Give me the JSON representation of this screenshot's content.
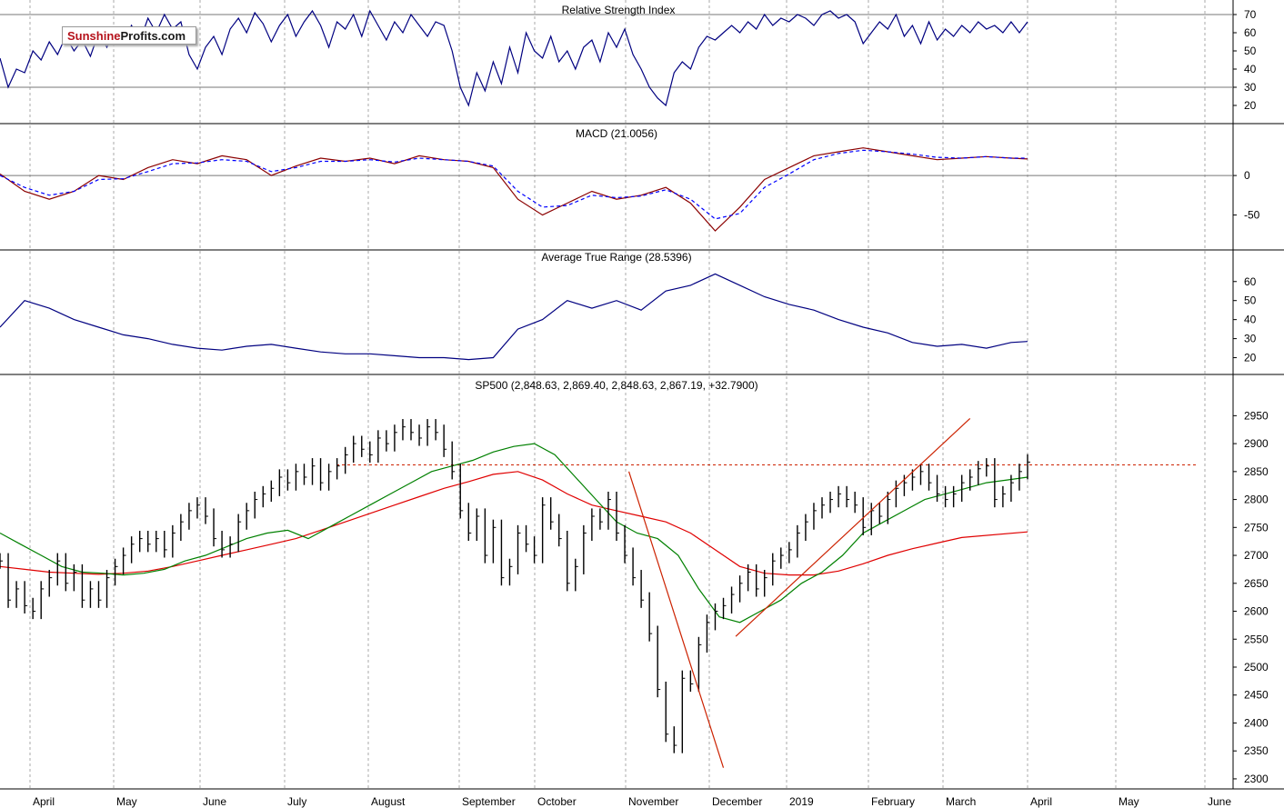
{
  "logo": {
    "part1": "Sunshine",
    "part2": "Profits.com"
  },
  "chart_data": {
    "type": "line",
    "months": [
      "April",
      "May",
      "June",
      "July",
      "August",
      "September",
      "October",
      "November",
      "December",
      "2019",
      "February",
      "March",
      "April",
      "May",
      "June"
    ],
    "colors": {
      "rsi": "#000080",
      "macd": "#8b0000",
      "signal": "#0000ff",
      "ma_fast": "#008000",
      "ma_slow": "#e00000",
      "trend": "#cc2200",
      "grid": "#aaaaaa"
    },
    "panels": [
      {
        "id": "rsi",
        "title": "Relative Strength Index",
        "y_ticks": [
          "70",
          "60",
          "50",
          "40",
          "30",
          "20"
        ],
        "ylim": [
          14,
          74
        ],
        "reference_lines": [
          70,
          30
        ],
        "series": [
          {
            "key": "rsi",
            "x": [
              0,
              2,
              4,
              6,
              8,
              10,
              12,
              14,
              16,
              18,
              20,
              22,
              24,
              26,
              28,
              30,
              32,
              34,
              36,
              38,
              40,
              42,
              44,
              46,
              48,
              50,
              52,
              54,
              56,
              58,
              60,
              62,
              64,
              66,
              68,
              70,
              72,
              74,
              76,
              78,
              80,
              82,
              84,
              86,
              88,
              90,
              92,
              94,
              96,
              98,
              100,
              102,
              104,
              106,
              108,
              110,
              112,
              114,
              116,
              118,
              120,
              122,
              124,
              126,
              128,
              130,
              132,
              134,
              136,
              138,
              140,
              142,
              144,
              146,
              148,
              150,
              152,
              154,
              156,
              158,
              160,
              162,
              164,
              166,
              168,
              170,
              172,
              174,
              176,
              178,
              180,
              182,
              184,
              186,
              188,
              190,
              192,
              194,
              196,
              198,
              200,
              202,
              204,
              206,
              208,
              210,
              212,
              214,
              216,
              218,
              220,
              222,
              224,
              226,
              228,
              230,
              232,
              234,
              236,
              238,
              240,
              242,
              244,
              246,
              248,
              250
            ],
            "values": [
              46,
              30,
              40,
              38,
              50,
              45,
              55,
              48,
              58,
              50,
              56,
              47,
              60,
              52,
              62,
              55,
              64,
              55,
              68,
              60,
              70,
              62,
              66,
              48,
              40,
              52,
              58,
              48,
              62,
              68,
              60,
              71,
              65,
              55,
              64,
              70,
              58,
              66,
              72,
              64,
              52,
              66,
              62,
              70,
              58,
              72,
              64,
              56,
              66,
              60,
              70,
              64,
              58,
              66,
              64,
              50,
              30,
              20,
              38,
              28,
              44,
              32,
              52,
              38,
              60,
              50,
              46,
              58,
              44,
              50,
              40,
              52,
              56,
              44,
              60,
              52,
              62,
              48,
              40,
              30,
              24,
              20,
              38,
              44,
              40,
              52,
              58,
              56,
              60,
              64,
              60,
              66,
              62,
              70,
              64,
              68,
              66,
              70,
              68,
              64,
              70,
              72,
              68,
              70,
              66,
              54,
              60,
              66,
              62,
              70,
              58,
              64,
              54,
              66,
              56,
              62,
              58,
              64,
              60,
              66,
              62,
              64,
              60,
              66,
              60,
              66
            ]
          }
        ]
      },
      {
        "id": "macd",
        "title": "MACD (21.0056)",
        "y_ticks": [
          "0",
          "-50"
        ],
        "ylim": [
          -85,
          45
        ],
        "reference_lines": [
          0
        ],
        "series": [
          {
            "key": "macd",
            "x": [
              0,
              6,
              12,
              18,
              24,
              30,
              36,
              42,
              48,
              54,
              60,
              66,
              72,
              78,
              84,
              90,
              96,
              102,
              108,
              114,
              120,
              126,
              132,
              138,
              144,
              150,
              156,
              162,
              168,
              174,
              180,
              186,
              192,
              198,
              204,
              210,
              216,
              222,
              228,
              234,
              240,
              246,
              250
            ],
            "values": [
              2,
              -20,
              -30,
              -20,
              0,
              -5,
              10,
              20,
              15,
              25,
              20,
              0,
              12,
              22,
              18,
              22,
              15,
              25,
              20,
              18,
              10,
              -30,
              -50,
              -35,
              -20,
              -30,
              -25,
              -15,
              -35,
              -70,
              -40,
              -5,
              10,
              25,
              30,
              35,
              30,
              25,
              20,
              22,
              24,
              22,
              21
            ]
          },
          {
            "key": "signal",
            "x": [
              0,
              6,
              12,
              18,
              24,
              30,
              36,
              42,
              48,
              54,
              60,
              66,
              72,
              78,
              84,
              90,
              96,
              102,
              108,
              114,
              120,
              126,
              132,
              138,
              144,
              150,
              156,
              162,
              168,
              174,
              180,
              186,
              192,
              198,
              204,
              210,
              216,
              222,
              228,
              234,
              240,
              246,
              250
            ],
            "values": [
              0,
              -15,
              -25,
              -20,
              -5,
              -4,
              5,
              15,
              16,
              20,
              18,
              5,
              10,
              18,
              18,
              20,
              17,
              22,
              20,
              18,
              12,
              -20,
              -40,
              -38,
              -25,
              -28,
              -26,
              -18,
              -30,
              -55,
              -48,
              -15,
              2,
              20,
              28,
              32,
              30,
              27,
              23,
              22,
              24,
              22,
              22
            ]
          }
        ]
      },
      {
        "id": "atr",
        "title": "Average True Range (28.5396)",
        "y_ticks": [
          "60",
          "50",
          "40",
          "30",
          "20"
        ],
        "ylim": [
          15,
          68
        ],
        "reference_lines": [],
        "series": [
          {
            "key": "rsi",
            "x": [
              0,
              6,
              12,
              18,
              24,
              30,
              36,
              42,
              48,
              54,
              60,
              66,
              72,
              78,
              84,
              90,
              96,
              102,
              108,
              114,
              120,
              126,
              132,
              138,
              144,
              150,
              156,
              162,
              168,
              174,
              180,
              186,
              192,
              198,
              204,
              210,
              216,
              222,
              228,
              234,
              240,
              246,
              250
            ],
            "values": [
              36,
              50,
              46,
              40,
              36,
              32,
              30,
              27,
              25,
              24,
              26,
              27,
              25,
              23,
              22,
              22,
              21,
              20,
              20,
              19,
              20,
              35,
              40,
              50,
              46,
              50,
              45,
              55,
              58,
              64,
              58,
              52,
              48,
              45,
              40,
              36,
              33,
              28,
              26,
              27,
              25,
              28,
              28.5
            ]
          }
        ]
      },
      {
        "id": "price",
        "title": "SP500 (2,848.63, 2,869.40, 2,848.63, 2,867.19, +32.7900)",
        "y_ticks": [
          "2950",
          "2900",
          "2850",
          "2800",
          "2750",
          "2700",
          "2650",
          "2600",
          "2550",
          "2500",
          "2450",
          "2400",
          "2350",
          "2300"
        ],
        "ylim": [
          2295,
          2975
        ],
        "resistance": 2862,
        "price_x": [
          0,
          2,
          4,
          6,
          8,
          10,
          12,
          14,
          16,
          18,
          20,
          22,
          24,
          26,
          28,
          30,
          32,
          34,
          36,
          38,
          40,
          42,
          44,
          46,
          48,
          50,
          52,
          54,
          56,
          58,
          60,
          62,
          64,
          66,
          68,
          70,
          72,
          74,
          76,
          78,
          80,
          82,
          84,
          86,
          88,
          90,
          92,
          94,
          96,
          98,
          100,
          102,
          104,
          106,
          108,
          110,
          112,
          114,
          116,
          118,
          120,
          122,
          124,
          126,
          128,
          130,
          132,
          134,
          136,
          138,
          140,
          142,
          144,
          146,
          148,
          150,
          152,
          154,
          156,
          158,
          160,
          162,
          164,
          166,
          168,
          170,
          172,
          174,
          176,
          178,
          180,
          182,
          184,
          186,
          188,
          190,
          192,
          194,
          196,
          198,
          200,
          202,
          204,
          206,
          208,
          210,
          212,
          214,
          216,
          218,
          220,
          222,
          224,
          226,
          228,
          230,
          232,
          234,
          236,
          238,
          240,
          242,
          244,
          246,
          248,
          250
        ],
        "price_values": [
          2690,
          2620,
          2640,
          2610,
          2600,
          2640,
          2660,
          2690,
          2650,
          2670,
          2620,
          2640,
          2620,
          2660,
          2680,
          2700,
          2720,
          2730,
          2720,
          2730,
          2710,
          2740,
          2760,
          2780,
          2790,
          2770,
          2730,
          2710,
          2720,
          2760,
          2780,
          2800,
          2810,
          2820,
          2840,
          2830,
          2850,
          2840,
          2860,
          2830,
          2850,
          2860,
          2880,
          2900,
          2890,
          2880,
          2910,
          2900,
          2920,
          2930,
          2920,
          2910,
          2930,
          2920,
          2890,
          2850,
          2780,
          2740,
          2770,
          2700,
          2750,
          2660,
          2680,
          2740,
          2720,
          2700,
          2790,
          2760,
          2730,
          2650,
          2680,
          2740,
          2770,
          2760,
          2800,
          2740,
          2700,
          2660,
          2620,
          2560,
          2460,
          2380,
          2360,
          2480,
          2470,
          2540,
          2580,
          2600,
          2610,
          2630,
          2650,
          2670,
          2640,
          2660,
          2690,
          2700,
          2710,
          2740,
          2760,
          2780,
          2790,
          2800,
          2810,
          2800,
          2790,
          2750,
          2780,
          2770,
          2800,
          2820,
          2830,
          2840,
          2850,
          2830,
          2810,
          2800,
          2810,
          2830,
          2840,
          2855,
          2860,
          2800,
          2810,
          2830,
          2850,
          2867
        ],
        "ma_fast_values": [
          2740,
          2720,
          2700,
          2680,
          2670,
          2668,
          2665,
          2668,
          2675,
          2690,
          2700,
          2715,
          2730,
          2740,
          2745,
          2730,
          2750,
          2770,
          2790,
          2810,
          2830,
          2850,
          2860,
          2870,
          2885,
          2895,
          2900,
          2880,
          2840,
          2800,
          2760,
          2740,
          2730,
          2700,
          2640,
          2590,
          2580,
          2600,
          2620,
          2650,
          2670,
          2700,
          2740,
          2760,
          2780,
          2800,
          2810,
          2820,
          2830,
          2835,
          2840
        ],
        "ma_fast_x": [
          0,
          5,
          10,
          15,
          20,
          25,
          30,
          35,
          40,
          45,
          50,
          55,
          60,
          65,
          70,
          75,
          80,
          85,
          90,
          95,
          100,
          105,
          110,
          115,
          120,
          125,
          130,
          135,
          140,
          145,
          150,
          155,
          160,
          165,
          170,
          175,
          180,
          185,
          190,
          195,
          200,
          205,
          210,
          215,
          220,
          225,
          230,
          235,
          240,
          245,
          250
        ],
        "ma_slow_values": [
          2680,
          2675,
          2670,
          2668,
          2666,
          2668,
          2672,
          2680,
          2690,
          2700,
          2710,
          2720,
          2730,
          2745,
          2760,
          2775,
          2790,
          2805,
          2820,
          2832,
          2845,
          2850,
          2835,
          2810,
          2790,
          2780,
          2770,
          2760,
          2740,
          2710,
          2680,
          2668,
          2665,
          2665,
          2672,
          2685,
          2700,
          2712,
          2722,
          2732,
          2742
        ],
        "ma_slow_x": [
          0,
          6,
          12,
          18,
          24,
          30,
          36,
          42,
          48,
          54,
          60,
          66,
          72,
          78,
          84,
          90,
          96,
          102,
          108,
          114,
          120,
          126,
          132,
          138,
          144,
          150,
          156,
          162,
          168,
          174,
          180,
          186,
          192,
          198,
          204,
          210,
          216,
          222,
          228,
          234,
          250
        ],
        "trendlines": [
          {
            "x": [
              153,
              176
            ],
            "values": [
              2850,
              2320
            ]
          },
          {
            "x": [
              179,
              236
            ],
            "values": [
              2555,
              2945
            ]
          }
        ]
      }
    ]
  }
}
